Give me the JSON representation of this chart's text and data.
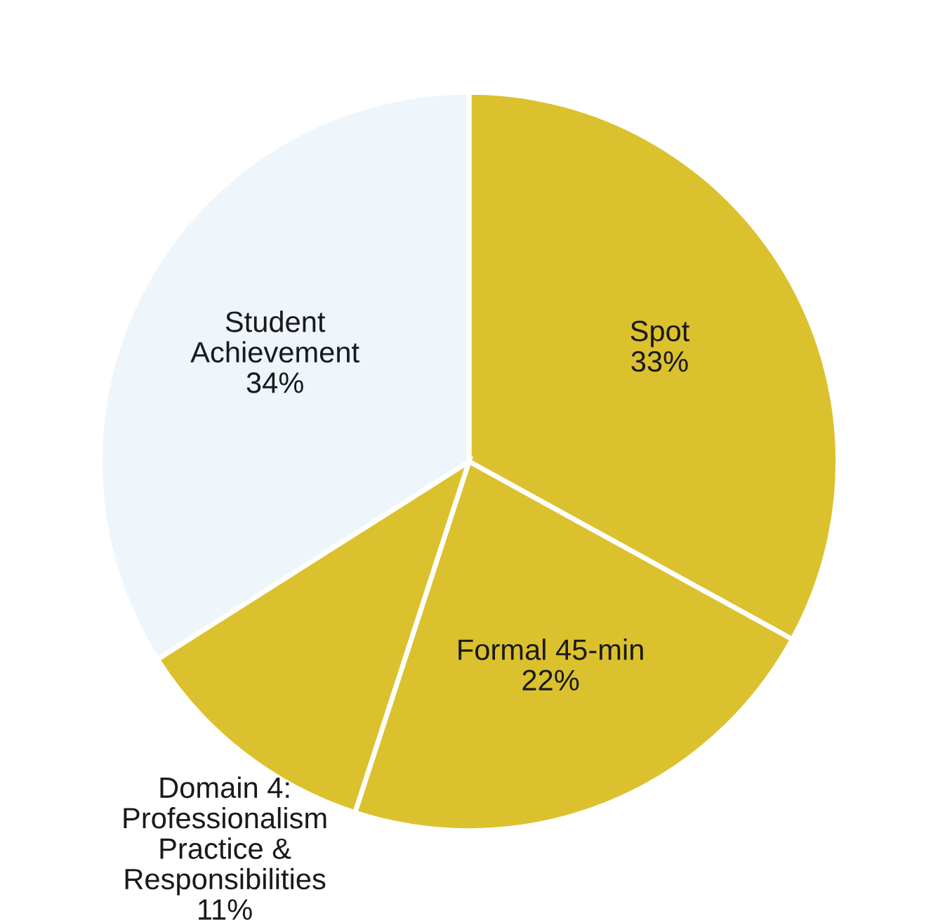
{
  "chart_data": {
    "type": "pie",
    "categories": [
      "Spot",
      "Formal 45-min",
      "Domain 4:\nProfessionalism\nPractice &\nResponsibilities",
      "Student\nAchievement"
    ],
    "values": [
      33,
      22,
      11,
      34
    ],
    "colors": [
      "#dcc12e",
      "#dcc12e",
      "#dcc12e",
      "#eef5fb"
    ],
    "value_labels": [
      "33%",
      "22%",
      "11%",
      "34%"
    ]
  }
}
